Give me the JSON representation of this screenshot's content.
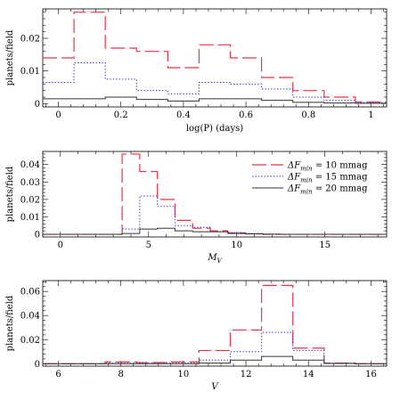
{
  "chart_data": [
    {
      "type": "histogram",
      "xlabel": "log(P)  (days)",
      "ylabel": "planets/field",
      "xlim": [
        -0.05,
        1.05
      ],
      "ylim": [
        -0.001,
        0.029
      ],
      "x_ticks": [
        0,
        0.2,
        0.4,
        0.6,
        0.8,
        1
      ],
      "x_tick_labels": [
        "0",
        "0.2",
        "0.4",
        "0.6",
        "0.8",
        "1"
      ],
      "y_ticks": [
        0,
        0.01,
        0.02
      ],
      "y_tick_labels": [
        "0",
        "0.01",
        "0.02"
      ],
      "bin_edges": [
        -0.05,
        0.05,
        0.15,
        0.25,
        0.35,
        0.45,
        0.55,
        0.65,
        0.75,
        0.85,
        0.95,
        1.05
      ],
      "series": [
        {
          "style": "long-dash",
          "color": "#ee3344",
          "values": [
            0.014,
            0.028,
            0.017,
            0.016,
            0.011,
            0.018,
            0.014,
            0.008,
            0.004,
            0.002,
            0.0005
          ]
        },
        {
          "style": "dotted",
          "color": "#3333cc",
          "values": [
            0.0065,
            0.0125,
            0.0075,
            0.004,
            0.003,
            0.0065,
            0.006,
            0.0045,
            0.002,
            0.001,
            0.0003
          ]
        },
        {
          "style": "solid",
          "color": "#333333",
          "values": [
            0.0015,
            0.0015,
            0.002,
            0.0013,
            0.0008,
            0.0015,
            0.0015,
            0.001,
            0.0004,
            0.0002,
            0.0001
          ]
        }
      ]
    },
    {
      "type": "histogram",
      "xlabel": "M_V",
      "ylabel": "planets/field",
      "xlim": [
        -1,
        18.5
      ],
      "ylim": [
        -0.0015,
        0.0475
      ],
      "x_ticks": [
        0,
        5,
        10,
        15
      ],
      "x_tick_labels": [
        "0",
        "5",
        "10",
        "15"
      ],
      "y_ticks": [
        0,
        0.01,
        0.02,
        0.03,
        0.04
      ],
      "y_tick_labels": [
        "0",
        "0.01",
        "0.02",
        "0.03",
        "0.04"
      ],
      "bin_edges": [
        -1,
        0,
        1,
        2,
        3,
        3.5,
        4.5,
        5.5,
        6.5,
        7.5,
        8.5,
        9.5,
        10.5,
        11.5,
        12.5,
        13.5,
        14.5,
        15.5,
        16.5,
        17.5,
        18.5
      ],
      "legend": {
        "placement": "top-right",
        "entries": [
          {
            "prefix": "ΔF",
            "sub": "min",
            "suffix": " = 10 mmag",
            "style": "long-dash",
            "color": "#ee3344"
          },
          {
            "prefix": "ΔF",
            "sub": "min",
            "suffix": " = 15 mmag",
            "style": "dotted",
            "color": "#3333cc"
          },
          {
            "prefix": "ΔF",
            "sub": "min",
            "suffix": " = 20 mmag",
            "style": "solid",
            "color": "#333333"
          }
        ]
      },
      "series": [
        {
          "style": "long-dash",
          "color": "#ee3344",
          "values": [
            0,
            0,
            0,
            0,
            0,
            0.046,
            0.036,
            0.02,
            0.008,
            0.0035,
            0.002,
            0.0008,
            0.0003,
            0,
            0,
            0,
            0,
            0,
            0,
            0
          ]
        },
        {
          "style": "dotted",
          "color": "#3333cc",
          "values": [
            0,
            0,
            0,
            0,
            0,
            0.003,
            0.022,
            0.016,
            0.005,
            0.004,
            0.0015,
            0.001,
            0.0005,
            0.0002,
            0,
            0,
            0,
            0,
            0,
            0
          ]
        },
        {
          "style": "solid",
          "color": "#333333",
          "values": [
            0,
            0,
            0,
            0,
            0,
            0.0005,
            0.003,
            0.0035,
            0.002,
            0.0015,
            0.0015,
            0.0005,
            0.0003,
            0.0001,
            0,
            0,
            0,
            0,
            0,
            0
          ]
        }
      ]
    },
    {
      "type": "histogram",
      "xlabel": "V",
      "ylabel": "planets/field",
      "xlim": [
        5.5,
        16.5
      ],
      "ylim": [
        -0.002,
        0.069
      ],
      "x_ticks": [
        6,
        8,
        10,
        12,
        14,
        16
      ],
      "x_tick_labels": [
        "6",
        "8",
        "10",
        "12",
        "14",
        "16"
      ],
      "y_ticks": [
        0,
        0.02,
        0.04,
        0.06
      ],
      "y_tick_labels": [
        "0",
        "0.02",
        "0.04",
        "0.06"
      ],
      "bin_edges": [
        5.5,
        6.5,
        7.5,
        8.5,
        9.5,
        10.5,
        11.5,
        12.5,
        13.5,
        14.5,
        15.5,
        16.5
      ],
      "series": [
        {
          "style": "long-dash",
          "color": "#ee3344",
          "values": [
            0,
            0,
            0.0015,
            0.001,
            0.0015,
            0.011,
            0.028,
            0.065,
            0.013,
            0.0005,
            0
          ]
        },
        {
          "style": "dotted",
          "color": "#3333cc",
          "values": [
            0,
            0,
            0.0005,
            0.0005,
            0.0005,
            0.003,
            0.01,
            0.026,
            0.011,
            0.0005,
            0
          ]
        },
        {
          "style": "solid",
          "color": "#333333",
          "values": [
            0,
            0,
            0,
            0,
            0,
            0.0005,
            0.003,
            0.006,
            0.003,
            0.0002,
            0
          ]
        }
      ]
    }
  ]
}
